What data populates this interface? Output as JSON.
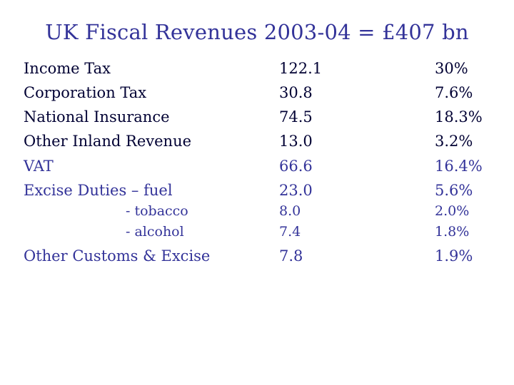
{
  "title": "UK Fiscal Revenues 2003-04 = £407 bn",
  "colors": {
    "title": "#333399",
    "text": "#000033",
    "accent": "#333399"
  },
  "rows": [
    {
      "label": "Income Tax",
      "amount": "122.1",
      "share": "30%",
      "color": "#000033"
    },
    {
      "label": "Corporation Tax",
      "amount": "30.8",
      "share": "7.6%",
      "color": "#000033"
    },
    {
      "label": "National Insurance",
      "amount": "74.5",
      "share": "18.3%",
      "color": "#000033"
    },
    {
      "label": "Other Inland Revenue",
      "amount": "13.0",
      "share": "3.2%",
      "color": "#000033"
    },
    {
      "label": "VAT",
      "amount": "66.6",
      "share": "16.4%",
      "color": "#333399"
    },
    {
      "label": "Excise Duties – fuel",
      "amount": "23.0",
      "share": "5.6%",
      "color": "#333399"
    },
    {
      "label": "- tobacco",
      "amount": "8.0",
      "share": "2.0%",
      "color": "#333399"
    },
    {
      "label": "- alcohol",
      "amount": "7.4",
      "share": "1.8%",
      "color": "#333399"
    },
    {
      "label": "Other Customs & Excise",
      "amount": "7.8",
      "share": "1.9%",
      "color": "#333399"
    }
  ]
}
